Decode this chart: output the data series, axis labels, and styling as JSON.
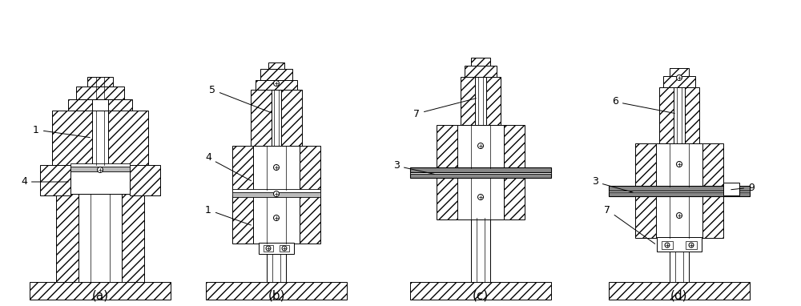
{
  "bg_color": "#ffffff",
  "subfig_labels": [
    "(a)",
    "(b)",
    "(c)",
    "(d)"
  ],
  "label_fontsize": 9,
  "subfig_label_fontsize": 11,
  "hatch": "///",
  "lw": 0.7
}
